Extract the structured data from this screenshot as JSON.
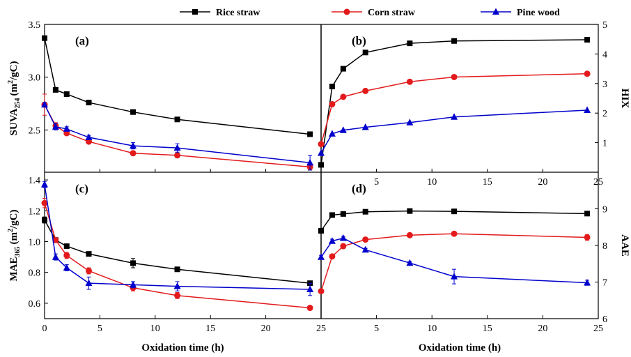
{
  "legend": [
    {
      "name": "Rice straw",
      "color": "#000000",
      "marker": "square"
    },
    {
      "name": "Corn straw",
      "color": "#e31a1c",
      "marker": "circle"
    },
    {
      "name": "Pine wood",
      "color": "#0000cc",
      "marker": "triangle"
    }
  ],
  "chart_data": [
    {
      "type": "line",
      "panel": "(a)",
      "ylabel": "SUVA254 (m2/gC)",
      "ylabel_main": "SUVA",
      "ylabel_sub": "254",
      "ylabel_unit": "(m",
      "ylabel_sup": "2",
      "ylabel_tail": "/gC)",
      "xlabel": "",
      "xlim": [
        0,
        25
      ],
      "ylim": [
        2.1,
        3.5
      ],
      "yticks": [
        2.5,
        3.0,
        3.5
      ],
      "ytick_labels": [
        "2.5",
        "3.0",
        "3.5"
      ],
      "xticks": [
        0,
        5,
        10,
        15,
        20,
        25
      ],
      "xtick_labels": [],
      "yaxis_side": "left",
      "x": [
        0,
        1,
        2,
        4,
        8,
        12,
        24
      ],
      "series": [
        {
          "name": "Rice straw",
          "values": [
            3.37,
            2.88,
            2.84,
            2.76,
            2.67,
            2.6,
            2.46
          ]
        },
        {
          "name": "Corn straw",
          "values": [
            2.74,
            2.54,
            2.47,
            2.39,
            2.28,
            2.26,
            2.15
          ],
          "errors": [
            0.1,
            0.03,
            0.02,
            0.02,
            0.02,
            0.02,
            0.03
          ]
        },
        {
          "name": "Pine wood",
          "values": [
            2.74,
            2.53,
            2.51,
            2.43,
            2.35,
            2.33,
            2.19
          ],
          "errors": [
            0.02,
            0.03,
            0.02,
            0.02,
            0.03,
            0.04,
            0.07
          ]
        }
      ]
    },
    {
      "type": "line",
      "panel": "(b)",
      "ylabel": "HIX",
      "xlabel": "Oxidation time (h)",
      "xlim": [
        0,
        25
      ],
      "ylim": [
        0,
        5
      ],
      "yticks": [
        1,
        2,
        3,
        4,
        5
      ],
      "ytick_labels": [
        "1",
        "2",
        "3",
        "4",
        "5"
      ],
      "xticks": [
        5,
        10,
        15,
        20,
        25
      ],
      "xtick_labels": [
        "5",
        "10",
        "15",
        "20",
        "25"
      ],
      "yaxis_side": "right",
      "x": [
        0,
        1,
        2,
        4,
        8,
        12,
        24
      ],
      "series": [
        {
          "name": "Rice straw",
          "values": [
            0.25,
            2.9,
            3.5,
            4.05,
            4.36,
            4.44,
            4.48
          ]
        },
        {
          "name": "Corn straw",
          "values": [
            0.95,
            2.3,
            2.55,
            2.75,
            3.06,
            3.22,
            3.33
          ]
        },
        {
          "name": "Pine wood",
          "values": [
            0.65,
            1.3,
            1.42,
            1.52,
            1.68,
            1.87,
            2.1
          ]
        }
      ]
    },
    {
      "type": "line",
      "panel": "(c)",
      "ylabel": "MAE365 (m2/gC)",
      "ylabel_main": "MAE",
      "ylabel_sub": "365",
      "ylabel_unit": "(m",
      "ylabel_sup": "2",
      "ylabel_tail": "/gC)",
      "xlabel": "Oxidation time (h)",
      "xlim": [
        0,
        25
      ],
      "ylim": [
        0.5,
        1.45
      ],
      "yticks": [
        0.6,
        0.8,
        1.0,
        1.2,
        1.4
      ],
      "ytick_labels": [
        "0.6",
        "0.8",
        "1.0",
        "1.2",
        "1.4"
      ],
      "xticks": [
        0,
        5,
        10,
        15,
        20,
        25
      ],
      "xtick_labels": [
        "0",
        "5",
        "10",
        "15",
        "20",
        "25"
      ],
      "yaxis_side": "left",
      "x": [
        0,
        1,
        2,
        4,
        8,
        12,
        24
      ],
      "series": [
        {
          "name": "Rice straw",
          "values": [
            1.14,
            1.01,
            0.97,
            0.92,
            0.86,
            0.82,
            0.73
          ],
          "errors": [
            0.02,
            0.01,
            0.01,
            0.01,
            0.03,
            0.01,
            0.01
          ]
        },
        {
          "name": "Corn straw",
          "values": [
            1.25,
            1.01,
            0.91,
            0.81,
            0.7,
            0.65,
            0.57
          ],
          "errors": [
            0.03,
            0.01,
            0.02,
            0.02,
            0.02,
            0.02,
            0.01
          ]
        },
        {
          "name": "Pine wood",
          "values": [
            1.37,
            0.9,
            0.83,
            0.73,
            0.72,
            0.71,
            0.69
          ],
          "errors": [
            0.02,
            0.02,
            0.02,
            0.04,
            0.02,
            0.03,
            0.04
          ]
        }
      ]
    },
    {
      "type": "line",
      "panel": "(d)",
      "ylabel": "AAE",
      "xlabel": "Oxidation time (h)",
      "xlim": [
        0,
        25
      ],
      "ylim": [
        6,
        10
      ],
      "yticks": [
        6,
        7,
        8,
        9
      ],
      "ytick_labels": [
        "6",
        "7",
        "8",
        "9"
      ],
      "xticks": [
        5,
        10,
        15,
        20,
        25
      ],
      "xtick_labels": [
        "5",
        "10",
        "15",
        "20",
        "25"
      ],
      "yaxis_side": "right",
      "x": [
        0,
        1,
        2,
        4,
        8,
        12,
        24
      ],
      "series": [
        {
          "name": "Rice straw",
          "values": [
            8.4,
            8.83,
            8.86,
            8.92,
            8.94,
            8.93,
            8.87
          ]
        },
        {
          "name": "Corn straw",
          "values": [
            6.75,
            7.7,
            7.98,
            8.16,
            8.28,
            8.32,
            8.22
          ],
          "errors": [
            0.05,
            0.05,
            0.04,
            0.03,
            0.04,
            0.04,
            0.08
          ]
        },
        {
          "name": "Pine wood",
          "values": [
            7.68,
            8.12,
            8.2,
            7.88,
            7.52,
            7.15,
            6.98
          ],
          "errors": [
            0.05,
            0.05,
            0.05,
            0.04,
            0.04,
            0.2,
            0.07
          ]
        }
      ]
    }
  ]
}
